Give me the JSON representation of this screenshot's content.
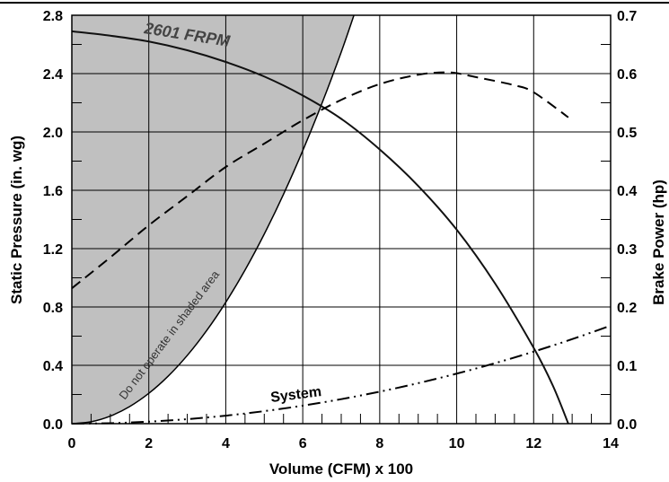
{
  "chart_data": {
    "type": "line",
    "xlabel": "Volume (CFM) x 100",
    "ylabel": "Static Pressure (in. wg)",
    "y2label": "Brake Power (hp)",
    "xlim": [
      0,
      14
    ],
    "ylim": [
      0,
      2.8
    ],
    "y2lim": [
      0,
      0.7
    ],
    "grid": true,
    "x_ticks": [
      "0",
      "2",
      "4",
      "6",
      "8",
      "10",
      "12",
      "14"
    ],
    "y_ticks": [
      "0.0",
      "0.4",
      "0.8",
      "1.2",
      "1.6",
      "2.0",
      "2.4",
      "2.8"
    ],
    "y2_ticks": [
      "0.0",
      "0.1",
      "0.2",
      "0.3",
      "0.4",
      "0.5",
      "0.6",
      "0.7"
    ],
    "annotations": {
      "fan_curve_label": "2601 FRPM",
      "system_label": "System",
      "shaded_area_label": "Do not operate in shaded area"
    },
    "series": [
      {
        "key": "fan_curve",
        "axis": "left",
        "style": "solid",
        "x": [
          0,
          1,
          2,
          3,
          4,
          5,
          6,
          7,
          8,
          9,
          10,
          11,
          12,
          12.5,
          12.9
        ],
        "y": [
          2.69,
          2.66,
          2.62,
          2.56,
          2.48,
          2.38,
          2.25,
          2.09,
          1.88,
          1.63,
          1.33,
          0.96,
          0.52,
          0.26,
          0.0
        ]
      },
      {
        "key": "brake_power",
        "axis": "right",
        "style": "dashed",
        "x": [
          0,
          1,
          2,
          3,
          4,
          5,
          6,
          7,
          8,
          9,
          9.8,
          10.5,
          11.5,
          12,
          12.9
        ],
        "y": [
          0.232,
          0.285,
          0.34,
          0.39,
          0.44,
          0.48,
          0.52,
          0.555,
          0.582,
          0.598,
          0.602,
          0.594,
          0.58,
          0.568,
          0.525
        ]
      },
      {
        "key": "system",
        "axis": "left",
        "style": "dash-dot-dot",
        "x": [
          0,
          1,
          2,
          3,
          4,
          5,
          6,
          7,
          8,
          9,
          10,
          11,
          12,
          13,
          14
        ],
        "y": [
          0.0,
          0.0034,
          0.0137,
          0.0309,
          0.0549,
          0.0857,
          0.1234,
          0.168,
          0.2194,
          0.2777,
          0.3429,
          0.4149,
          0.4937,
          0.5794,
          0.672
        ]
      },
      {
        "key": "shaded_boundary",
        "axis": "left",
        "style": "solid",
        "fill": "#c0c0c0",
        "x": [
          0,
          0.5,
          1,
          1.5,
          2,
          2.5,
          3,
          3.5,
          4,
          4.5,
          5,
          5.5,
          6,
          6.5,
          7,
          7.33
        ],
        "y": [
          0.0,
          0.013,
          0.052,
          0.117,
          0.208,
          0.325,
          0.468,
          0.637,
          0.832,
          1.053,
          1.3,
          1.573,
          1.872,
          2.197,
          2.548,
          2.8
        ]
      }
    ]
  }
}
